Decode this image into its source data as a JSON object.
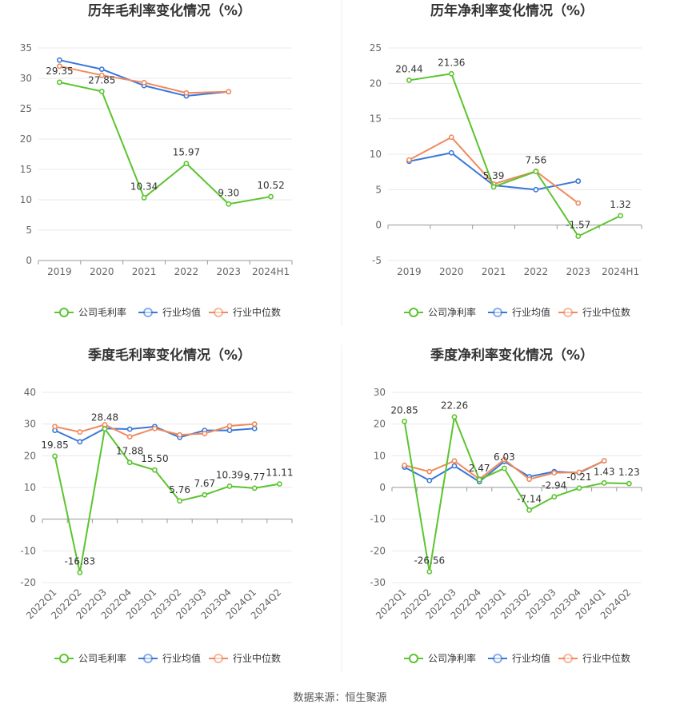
{
  "source": "数据来源：恒生聚源",
  "colors": {
    "company": "#5bc42f",
    "industry_avg": "#3a78d8",
    "industry_median": "#f08a5d",
    "grid": "#e8e8e8",
    "axis": "#999999",
    "text": "#666666",
    "title": "#333333"
  },
  "chart_data": [
    {
      "type": "line",
      "title": "历年毛利率变化情况（%）",
      "categories": [
        "2019",
        "2020",
        "2021",
        "2022",
        "2023",
        "2024H1"
      ],
      "ylim": [
        0,
        35
      ],
      "yticks": [
        0,
        5,
        10,
        15,
        20,
        25,
        30,
        35
      ],
      "grid": true,
      "legend": "bottom",
      "series": [
        {
          "name": "公司毛利率",
          "color": "#5bc42f",
          "values": [
            29.35,
            27.85,
            10.34,
            15.97,
            9.3,
            10.52
          ],
          "labels": [
            "29.35",
            "27.85",
            "10.34",
            "15.97",
            "9.30",
            "10.52"
          ]
        },
        {
          "name": "行业均值",
          "color": "#3a78d8",
          "values": [
            33.0,
            31.5,
            28.8,
            27.1,
            27.8,
            null
          ]
        },
        {
          "name": "行业中位数",
          "color": "#f08a5d",
          "values": [
            32.0,
            30.5,
            29.3,
            27.6,
            27.8,
            null
          ]
        }
      ]
    },
    {
      "type": "line",
      "title": "历年净利率变化情况（%）",
      "categories": [
        "2019",
        "2020",
        "2021",
        "2022",
        "2023",
        "2024H1"
      ],
      "ylim": [
        -5,
        25
      ],
      "yticks": [
        -5,
        0,
        5,
        10,
        15,
        20,
        25
      ],
      "grid": true,
      "legend": "bottom",
      "series": [
        {
          "name": "公司净利率",
          "color": "#5bc42f",
          "values": [
            20.44,
            21.36,
            5.39,
            7.56,
            -1.57,
            1.32
          ],
          "labels": [
            "20.44",
            "21.36",
            "5.39",
            "7.56",
            "-1.57",
            "1.32"
          ]
        },
        {
          "name": "行业均值",
          "color": "#3a78d8",
          "values": [
            9.0,
            10.2,
            5.6,
            5.0,
            6.2,
            null
          ]
        },
        {
          "name": "行业中位数",
          "color": "#f08a5d",
          "values": [
            9.2,
            12.4,
            5.8,
            7.6,
            3.1,
            null
          ]
        }
      ]
    },
    {
      "type": "line",
      "title": "季度毛利率变化情况（%）",
      "categories": [
        "2022Q1",
        "2022Q2",
        "2022Q3",
        "2022Q4",
        "2023Q1",
        "2023Q2",
        "2023Q3",
        "2023Q4",
        "2024Q1",
        "2024Q2"
      ],
      "ylim": [
        -20,
        40
      ],
      "yticks": [
        -20,
        -10,
        0,
        10,
        20,
        30,
        40
      ],
      "grid": true,
      "legend": "bottom",
      "series": [
        {
          "name": "公司毛利率",
          "color": "#5bc42f",
          "values": [
            19.85,
            -16.83,
            28.48,
            17.88,
            15.5,
            5.76,
            7.67,
            10.39,
            9.77,
            11.11
          ],
          "labels": [
            "19.85",
            "-16.83",
            "28.48",
            "17.88",
            "15.50",
            "5.76",
            "7.67",
            "10.39",
            "9.77",
            "11.11"
          ]
        },
        {
          "name": "行业均值",
          "color": "#3a78d8",
          "values": [
            28.0,
            24.4,
            28.6,
            28.4,
            29.2,
            25.8,
            28.0,
            28.0,
            28.6,
            null
          ]
        },
        {
          "name": "行业中位数",
          "color": "#f08a5d",
          "values": [
            29.2,
            27.5,
            29.8,
            26.0,
            28.6,
            26.6,
            27.0,
            29.4,
            30.0,
            null
          ]
        }
      ]
    },
    {
      "type": "line",
      "title": "季度净利率变化情况（%）",
      "categories": [
        "2022Q1",
        "2022Q2",
        "2022Q3",
        "2022Q4",
        "2023Q1",
        "2023Q2",
        "2023Q3",
        "2023Q4",
        "2024Q1",
        "2024Q2"
      ],
      "ylim": [
        -30,
        30
      ],
      "yticks": [
        -30,
        -20,
        -10,
        0,
        10,
        20,
        30
      ],
      "grid": true,
      "legend": "bottom",
      "series": [
        {
          "name": "公司净利率",
          "color": "#5bc42f",
          "values": [
            20.85,
            -26.56,
            22.26,
            2.47,
            6.03,
            -7.14,
            -2.94,
            -0.21,
            1.43,
            1.23
          ],
          "labels": [
            "20.85",
            "-26.56",
            "22.26",
            "2.47",
            "6.03",
            "-7.14",
            "-2.94",
            "-0.21",
            "1.43",
            "1.23"
          ]
        },
        {
          "name": "行业均值",
          "color": "#3a78d8",
          "values": [
            6.4,
            2.2,
            6.8,
            1.8,
            8.2,
            3.4,
            5.0,
            4.6,
            8.4,
            null
          ]
        },
        {
          "name": "行业中位数",
          "color": "#f08a5d",
          "values": [
            7.0,
            5.0,
            8.4,
            2.6,
            8.8,
            2.6,
            4.6,
            4.8,
            8.4,
            null
          ]
        }
      ]
    }
  ]
}
